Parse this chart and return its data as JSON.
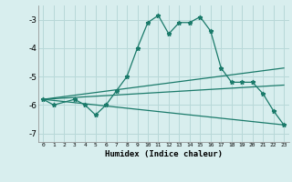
{
  "xlabel": "Humidex (Indice chaleur)",
  "background_color": "#d8eeee",
  "grid_color": "#b8d8d8",
  "line_color": "#1a7a6a",
  "xlim": [
    -0.5,
    23.5
  ],
  "ylim": [
    -7.3,
    -2.5
  ],
  "yticks": [
    -7,
    -6,
    -5,
    -4,
    -3
  ],
  "xticks": [
    0,
    1,
    2,
    3,
    4,
    5,
    6,
    7,
    8,
    9,
    10,
    11,
    12,
    13,
    14,
    15,
    16,
    17,
    18,
    19,
    20,
    21,
    22,
    23
  ],
  "series": [
    {
      "x": [
        0,
        1,
        3,
        4,
        5,
        6,
        7,
        8,
        9,
        10,
        11,
        12,
        13,
        14,
        15,
        16,
        17,
        18,
        19,
        20,
        21,
        22,
        23
      ],
      "y": [
        -5.8,
        -6.0,
        -5.8,
        -6.0,
        -6.35,
        -6.0,
        -5.5,
        -5.0,
        -4.0,
        -3.1,
        -2.85,
        -3.5,
        -3.1,
        -3.1,
        -2.9,
        -3.4,
        -4.7,
        -5.2,
        -5.2,
        -5.2,
        -5.6,
        -6.2,
        -6.7
      ],
      "marker": true
    },
    {
      "x": [
        0,
        23
      ],
      "y": [
        -5.8,
        -4.7
      ],
      "marker": false
    },
    {
      "x": [
        0,
        23
      ],
      "y": [
        -5.8,
        -5.3
      ],
      "marker": false
    },
    {
      "x": [
        0,
        23
      ],
      "y": [
        -5.8,
        -6.7
      ],
      "marker": false
    }
  ]
}
